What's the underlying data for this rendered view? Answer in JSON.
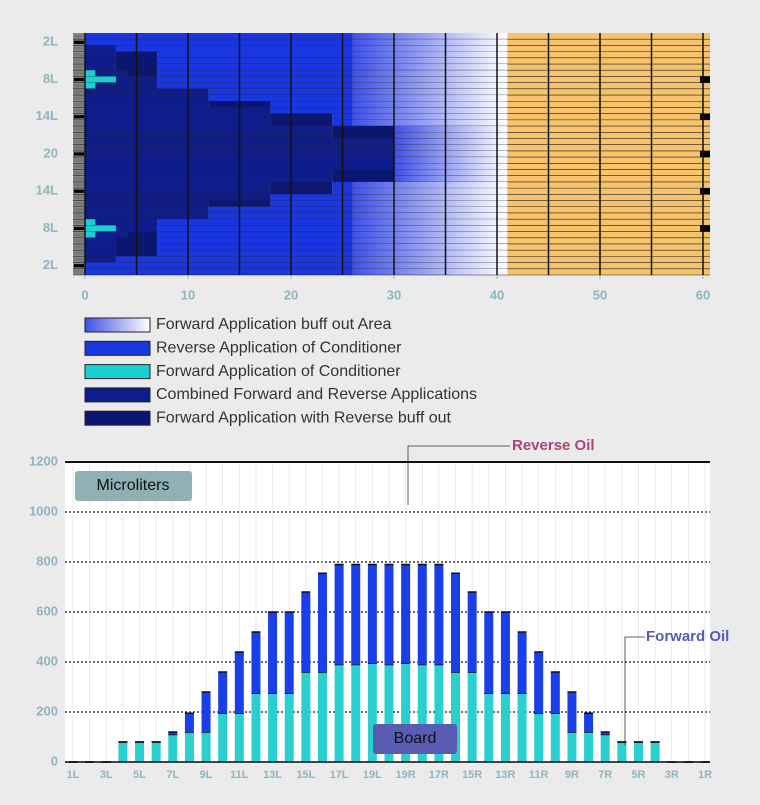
{
  "chart_data": [
    {
      "type": "barh",
      "categories": [
        null,
        "2L",
        null,
        null,
        null,
        null,
        null,
        "8L",
        null,
        null,
        null,
        null,
        null,
        "14L",
        null,
        null,
        null,
        null,
        null,
        "20",
        null,
        null,
        null,
        null,
        null,
        "14L",
        null,
        null,
        null,
        null,
        null,
        "8L",
        null,
        null,
        null,
        null,
        null,
        "2L",
        null
      ],
      "xlim": [
        0,
        60
      ],
      "xticks": [
        0,
        10,
        20,
        30,
        40,
        50,
        60
      ],
      "series": [
        {
          "name": "Forward Application buff out Area",
          "color": "#3f51e6",
          "values": [
            15,
            15,
            15,
            15,
            15,
            15,
            15,
            15,
            15,
            15,
            15,
            15,
            15,
            15,
            15,
            11,
            11,
            11,
            11,
            11,
            11,
            11,
            11,
            11,
            15,
            15,
            15,
            15,
            15,
            15,
            15,
            15,
            15,
            15,
            15,
            15,
            15,
            15,
            15
          ]
        },
        {
          "name": "Reverse Application of Conditioner",
          "color": "#1a36e0",
          "values": [
            26,
            26,
            23,
            19,
            19,
            19,
            19,
            19,
            19,
            14,
            14,
            8,
            8,
            2,
            2,
            0,
            0,
            0,
            0,
            0,
            0,
            0,
            0,
            0,
            2,
            2,
            8,
            8,
            14,
            14,
            19,
            19,
            19,
            19,
            19,
            19,
            23,
            26,
            26
          ]
        },
        {
          "name": "Forward Application of Conditioner",
          "color": "#1ad0d0",
          "values": [
            0,
            0,
            0,
            0,
            0,
            0,
            1,
            3,
            1,
            0,
            0,
            0,
            0,
            0,
            0,
            0,
            0,
            0,
            0,
            0,
            0,
            0,
            0,
            0,
            0,
            0,
            0,
            0,
            0,
            0,
            1,
            3,
            1,
            0,
            0,
            0,
            0,
            0,
            0
          ]
        },
        {
          "name": "Combined Forward and Reverse Applications",
          "color": "#0e1c8c",
          "values": [
            0,
            0,
            3,
            3,
            3,
            3,
            3,
            4,
            6,
            12,
            12,
            12,
            18,
            18,
            18,
            24,
            24,
            30,
            30,
            30,
            30,
            30,
            24,
            24,
            18,
            18,
            18,
            12,
            12,
            12,
            6,
            4,
            3,
            3,
            3,
            3,
            3,
            0,
            0
          ]
        },
        {
          "name": "Forward Application with Reverse buff out",
          "color": "#0a1670",
          "values": [
            0,
            0,
            0,
            4,
            4,
            4,
            3,
            0,
            0,
            0,
            0,
            6,
            0,
            6,
            6,
            6,
            6,
            0,
            0,
            0,
            0,
            0,
            6,
            6,
            6,
            6,
            0,
            6,
            0,
            0,
            0,
            0,
            3,
            4,
            4,
            4,
            0,
            0,
            0
          ]
        }
      ]
    },
    {
      "type": "bar",
      "stacked": true,
      "ylabel": "Microliters",
      "xlabel": "Board",
      "categories": [
        "1L",
        null,
        "3L",
        null,
        "5L",
        null,
        "7L",
        null,
        "9L",
        null,
        "11L",
        null,
        "13L",
        null,
        "15L",
        null,
        "17L",
        null,
        "19L",
        null,
        "19R",
        null,
        "17R",
        null,
        "15R",
        null,
        "13R",
        null,
        "11R",
        null,
        "9R",
        null,
        "7R",
        null,
        "5R",
        null,
        "3R",
        null,
        "1R"
      ],
      "ylim": [
        0,
        1200
      ],
      "yticks": [
        0,
        200,
        400,
        600,
        800,
        1000,
        1200
      ],
      "grid": true,
      "series": [
        {
          "name": "Forward Oil",
          "color": "#2ccfcf",
          "values": [
            0,
            0,
            0,
            80,
            80,
            80,
            110,
            120,
            120,
            195,
            195,
            275,
            275,
            275,
            360,
            360,
            390,
            390,
            395,
            390,
            395,
            390,
            390,
            360,
            360,
            275,
            275,
            275,
            195,
            195,
            120,
            120,
            110,
            80,
            80,
            80,
            0,
            0,
            0
          ]
        },
        {
          "name": "Reverse Oil",
          "color": "#1a3ee8",
          "values": [
            0,
            0,
            0,
            0,
            0,
            0,
            10,
            75,
            160,
            165,
            245,
            245,
            325,
            325,
            320,
            395,
            400,
            400,
            395,
            400,
            395,
            400,
            400,
            395,
            320,
            325,
            325,
            245,
            245,
            165,
            160,
            75,
            10,
            0,
            0,
            0,
            0,
            0,
            0
          ]
        }
      ]
    }
  ]
}
